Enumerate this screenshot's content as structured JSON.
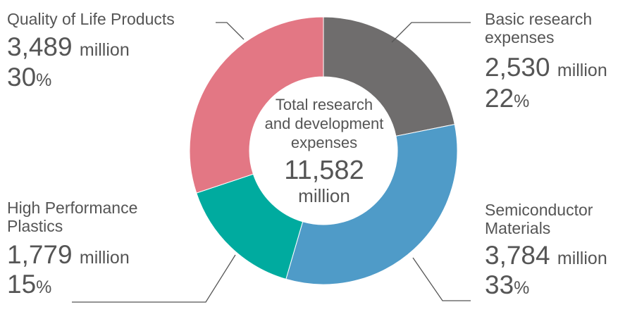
{
  "chart_data": {
    "type": "pie",
    "style": "donut",
    "center": {
      "title_lines": [
        "Total research",
        "and development",
        "expenses"
      ],
      "total": "11,582",
      "unit": "million"
    },
    "segments": [
      {
        "name_lines": [
          "Basic research",
          "expenses"
        ],
        "amount": "2,530",
        "value": 2530,
        "unit": "million",
        "percent": "22",
        "percent_unit": "%",
        "color": "#6f6d6d"
      },
      {
        "name_lines": [
          "Semiconductor",
          "Materials"
        ],
        "amount": "3,784",
        "value": 3784,
        "unit": "million",
        "percent": "33",
        "percent_unit": "%",
        "color": "#4f9bc8"
      },
      {
        "name_lines": [
          "High Performance",
          "Plastics"
        ],
        "amount": "1,779",
        "value": 1779,
        "unit": "million",
        "percent": "15",
        "percent_unit": "%",
        "color": "#00ab9f"
      },
      {
        "name_lines": [
          "Quality of Life Products"
        ],
        "amount": "3,489",
        "value": 3489,
        "unit": "million",
        "percent": "30",
        "percent_unit": "%",
        "color": "#e37784"
      }
    ]
  }
}
